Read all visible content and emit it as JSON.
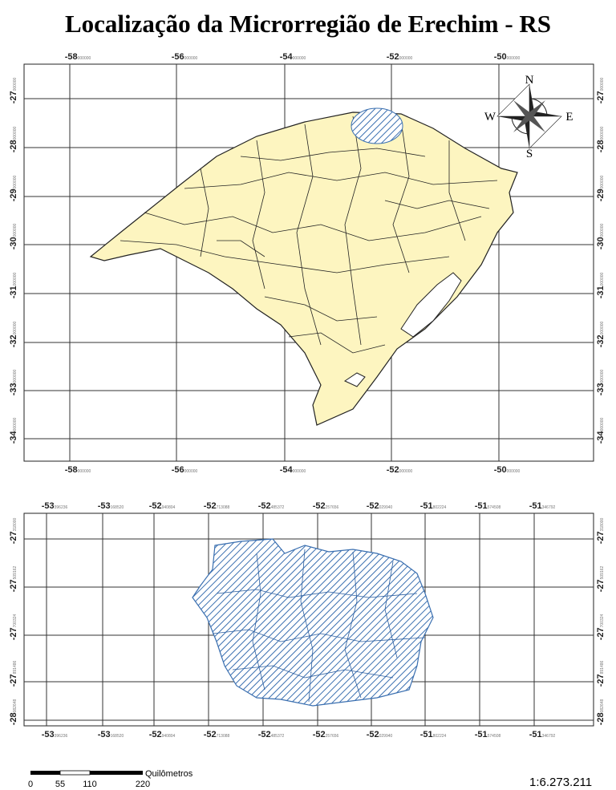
{
  "title": "Localização da Microrregião de Erechim - RS",
  "state_map": {
    "x_labels": [
      {
        "degrees": "-58",
        "fraction": "000000"
      },
      {
        "degrees": "-56",
        "fraction": "000000"
      },
      {
        "degrees": "-54",
        "fraction": "000000"
      },
      {
        "degrees": "-52",
        "fraction": "000000"
      },
      {
        "degrees": "-50",
        "fraction": "000000"
      }
    ],
    "y_labels": [
      {
        "degrees": "-27",
        "fraction": "000000"
      },
      {
        "degrees": "-28",
        "fraction": "000000"
      },
      {
        "degrees": "-29",
        "fraction": "000000"
      },
      {
        "degrees": "-30",
        "fraction": "000000"
      },
      {
        "degrees": "-31",
        "fraction": "000000"
      },
      {
        "degrees": "-32",
        "fraction": "000000"
      },
      {
        "degrees": "-33",
        "fraction": "000000"
      },
      {
        "degrees": "-34",
        "fraction": "000000"
      }
    ],
    "compass": {
      "north": "N",
      "south": "S",
      "east": "E",
      "west": "W"
    }
  },
  "microregion_map": {
    "x_labels": [
      {
        "degrees": "-53",
        "fraction": "396236"
      },
      {
        "degrees": "-53",
        "fraction": "168520"
      },
      {
        "degrees": "-52",
        "fraction": "940804"
      },
      {
        "degrees": "-52",
        "fraction": "713088"
      },
      {
        "degrees": "-52",
        "fraction": "485372"
      },
      {
        "degrees": "-52",
        "fraction": "257656"
      },
      {
        "degrees": "-52",
        "fraction": "029940"
      },
      {
        "degrees": "-51",
        "fraction": "802224"
      },
      {
        "degrees": "-51",
        "fraction": "574508"
      },
      {
        "degrees": "-51",
        "fraction": "346792"
      }
    ],
    "y_labels": [
      {
        "degrees": "-27",
        "fraction": "318000"
      },
      {
        "degrees": "-27",
        "fraction": "509162"
      },
      {
        "degrees": "-27",
        "fraction": "700324"
      },
      {
        "degrees": "-27",
        "fraction": "891486"
      },
      {
        "degrees": "-28",
        "fraction": "082648"
      }
    ]
  },
  "scale_bar": {
    "labels": [
      "0",
      "55",
      "110",
      "220"
    ],
    "unit": "Quilômetros"
  },
  "scale_ratio": "1:6.273.211"
}
